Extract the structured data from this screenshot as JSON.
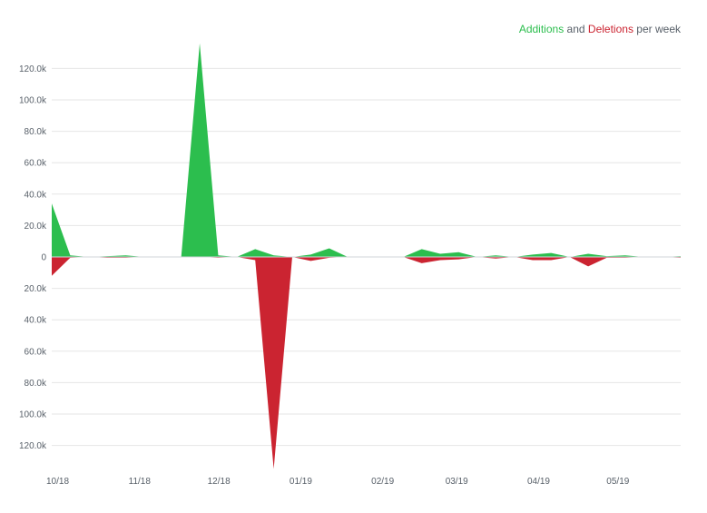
{
  "legend": {
    "additions_label": "Additions",
    "and_label": "and",
    "deletions_label": "Deletions",
    "suffix_label": "per week"
  },
  "colors": {
    "additions": "#2cbe4e",
    "deletions": "#cb2431",
    "grid": "#e6e6e6",
    "text": "#586069"
  },
  "chart_data": {
    "type": "area",
    "title": "",
    "xlabel": "",
    "ylabel": "",
    "grid": true,
    "legend_position": "top-right",
    "x_tick_labels": [
      "10/18",
      "11/18",
      "12/18",
      "01/19",
      "02/19",
      "03/19",
      "04/19",
      "05/19"
    ],
    "y_tick_labels": [
      "120.0k",
      "100.0k",
      "80.0k",
      "60.0k",
      "40.0k",
      "20.0k",
      "0",
      "20.0k",
      "40.0k",
      "60.0k",
      "80.0k",
      "100.0k",
      "120.0k"
    ],
    "ylim": [
      -135000,
      135000
    ],
    "x": [
      "2018-10-07",
      "2018-10-14",
      "2018-10-21",
      "2018-10-28",
      "2018-11-04",
      "2018-11-11",
      "2018-11-18",
      "2018-11-25",
      "2018-12-02",
      "2018-12-09",
      "2018-12-16",
      "2018-12-23",
      "2018-12-30",
      "2019-01-06",
      "2019-01-13",
      "2019-01-20",
      "2019-01-27",
      "2019-02-03",
      "2019-02-10",
      "2019-02-17",
      "2019-02-24",
      "2019-03-03",
      "2019-03-10",
      "2019-03-17",
      "2019-03-24",
      "2019-03-31",
      "2019-04-07",
      "2019-04-14",
      "2019-04-21",
      "2019-04-28",
      "2019-05-05",
      "2019-05-12",
      "2019-05-19",
      "2019-05-26",
      "2019-06-02"
    ],
    "series": [
      {
        "name": "Additions",
        "values": [
          34000,
          1000,
          0,
          500,
          1000,
          0,
          0,
          0,
          136000,
          1000,
          0,
          5000,
          1000,
          0,
          1500,
          5500,
          0,
          0,
          0,
          0,
          5000,
          2000,
          3000,
          0,
          1000,
          0,
          1500,
          2500,
          0,
          2000,
          500,
          1000,
          0,
          0,
          500
        ],
        "color": "#2cbe4e"
      },
      {
        "name": "Deletions",
        "values": [
          -12000,
          -500,
          0,
          -500,
          -500,
          0,
          0,
          0,
          0,
          -500,
          0,
          -2000,
          -135000,
          0,
          -2500,
          -500,
          0,
          0,
          0,
          0,
          -4000,
          -2000,
          -1500,
          0,
          -1000,
          0,
          -2000,
          -2000,
          0,
          -6000,
          -500,
          -500,
          0,
          0,
          -500
        ],
        "color": "#cb2431"
      }
    ]
  }
}
